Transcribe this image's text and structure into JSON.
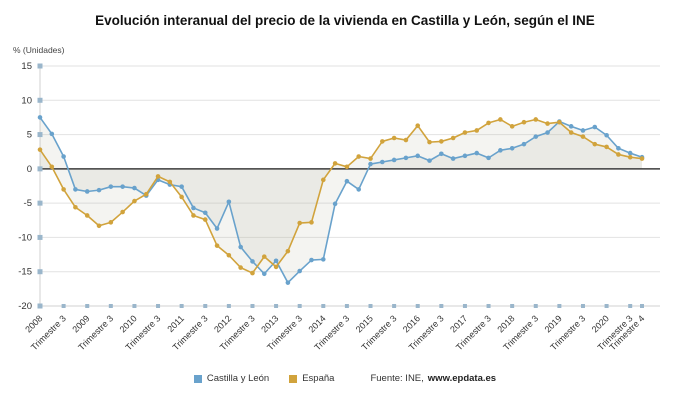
{
  "title": "Evolución interanual del precio de la vivienda en Castilla y León, según el INE",
  "axis": {
    "unit_label": "% (Unidades)"
  },
  "legend": {
    "items": [
      {
        "label": "Castilla y León",
        "color": "#69A2CC"
      },
      {
        "label": "España",
        "color": "#D1A33C"
      }
    ],
    "source_prefix": "Fuente: INE,",
    "source_link": "www.epdata.es"
  },
  "colors": {
    "grid": "#e2e2e2",
    "zero_line": "#3c3c3c",
    "tick_mark": "#9ab6cb",
    "axis_text": "#333333"
  },
  "chart_data": {
    "type": "line",
    "title": "Evolución interanual del precio de la vivienda en Castilla y León, según el INE",
    "ylabel": "% (Unidades)",
    "ylim": [
      -20,
      15
    ],
    "y_ticks": [
      15,
      10,
      5,
      0,
      -5,
      -10,
      -15,
      -20
    ],
    "x_range": "2008 Trimestre 1 - 2020 Trimestre 4 (quarterly)",
    "grid": true,
    "legend_position": "bottom",
    "x_ticks": [
      {
        "i": 0,
        "label": "2008"
      },
      {
        "i": 2,
        "label": "Trimestre 3"
      },
      {
        "i": 4,
        "label": "2009"
      },
      {
        "i": 6,
        "label": "Trimestre 3"
      },
      {
        "i": 8,
        "label": "2010"
      },
      {
        "i": 10,
        "label": "Trimestre 3"
      },
      {
        "i": 12,
        "label": "2011"
      },
      {
        "i": 14,
        "label": "Trimestre 3"
      },
      {
        "i": 16,
        "label": "2012"
      },
      {
        "i": 18,
        "label": "Trimestre 3"
      },
      {
        "i": 20,
        "label": "2013"
      },
      {
        "i": 22,
        "label": "Trimestre 3"
      },
      {
        "i": 24,
        "label": "2014"
      },
      {
        "i": 26,
        "label": "Trimestre 3"
      },
      {
        "i": 28,
        "label": "2015"
      },
      {
        "i": 30,
        "label": "Trimestre 3"
      },
      {
        "i": 32,
        "label": "2016"
      },
      {
        "i": 34,
        "label": "Trimestre 3"
      },
      {
        "i": 36,
        "label": "2017"
      },
      {
        "i": 38,
        "label": "Trimestre 3"
      },
      {
        "i": 40,
        "label": "2018"
      },
      {
        "i": 42,
        "label": "Trimestre 3"
      },
      {
        "i": 44,
        "label": "2019"
      },
      {
        "i": 46,
        "label": "Trimestre 3"
      },
      {
        "i": 48,
        "label": "2020"
      },
      {
        "i": 50,
        "label": "Trimestre 3"
      },
      {
        "i": 51,
        "label": "Trimestre 4"
      }
    ],
    "series": [
      {
        "name": "Castilla y León",
        "color": "#69A2CC",
        "values": [
          7.5,
          5.1,
          1.8,
          -3.0,
          -3.3,
          -3.1,
          -2.6,
          -2.6,
          -2.8,
          -3.9,
          -1.6,
          -2.3,
          -2.6,
          -5.7,
          -6.4,
          -8.7,
          -4.8,
          -11.4,
          -13.5,
          -15.3,
          -13.4,
          -16.6,
          -14.9,
          -13.3,
          -13.2,
          -5.1,
          -1.8,
          -3.0,
          0.7,
          1.0,
          1.3,
          1.6,
          1.9,
          1.2,
          2.2,
          1.5,
          1.9,
          2.3,
          1.6,
          2.7,
          3.0,
          3.6,
          4.7,
          5.3,
          6.9,
          6.2,
          5.6,
          6.1,
          4.9,
          3.0,
          2.3,
          1.7
        ]
      },
      {
        "name": "España",
        "color": "#D1A33C",
        "values": [
          2.8,
          0.3,
          -3.0,
          -5.6,
          -6.8,
          -8.3,
          -7.8,
          -6.3,
          -4.7,
          -3.7,
          -1.1,
          -1.9,
          -4.1,
          -6.8,
          -7.4,
          -11.2,
          -12.6,
          -14.4,
          -15.2,
          -12.8,
          -14.3,
          -12.0,
          -7.9,
          -7.8,
          -1.6,
          0.8,
          0.3,
          1.8,
          1.5,
          4.0,
          4.5,
          4.2,
          6.3,
          3.9,
          4.0,
          4.5,
          5.3,
          5.6,
          6.7,
          7.2,
          6.2,
          6.8,
          7.2,
          6.6,
          6.8,
          5.3,
          4.7,
          3.6,
          3.2,
          2.1,
          1.7,
          1.5
        ]
      }
    ]
  }
}
